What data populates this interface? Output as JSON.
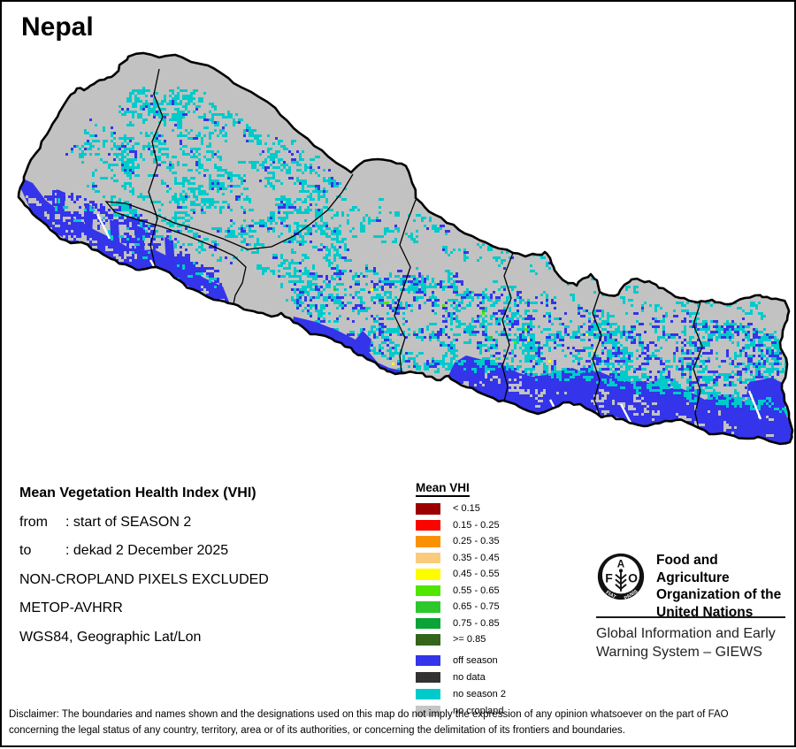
{
  "title": "Nepal",
  "map": {
    "colors": {
      "background": "#ffffff",
      "country_fill": "#c2c2c2",
      "border": "#000000",
      "off_season": "#3434ea",
      "no_data": "#323232",
      "no_season2": "#00cbcb",
      "no_cropland": "#c6c6c6",
      "river_gap": "#ffffff"
    }
  },
  "info_block": {
    "heading": "Mean Vegetation Health Index (VHI)",
    "lines": [
      {
        "label": "from",
        "value": ": start of SEASON 2"
      },
      {
        "label": "to",
        "value": ": dekad 2 December 2025"
      }
    ],
    "notes": [
      "NON-CROPLAND PIXELS EXCLUDED",
      "METOP-AVHRR",
      "WGS84, Geographic Lat/Lon"
    ]
  },
  "legend": {
    "title": "Mean VHI",
    "classes": [
      {
        "label": "< 0.15",
        "color": "#9a0000"
      },
      {
        "label": "0.15 - 0.25",
        "color": "#fa0400"
      },
      {
        "label": "0.25 - 0.35",
        "color": "#fa9104"
      },
      {
        "label": "0.35 - 0.45",
        "color": "#fbcb7d"
      },
      {
        "label": "0.45 - 0.55",
        "color": "#fdfd00"
      },
      {
        "label": "0.55 - 0.65",
        "color": "#50e600"
      },
      {
        "label": "0.65 - 0.75",
        "color": "#2cc82c"
      },
      {
        "label": "0.75 - 0.85",
        "color": "#0aa336"
      },
      {
        "label": ">= 0.85",
        "color": "#33661a"
      }
    ],
    "extra_classes": [
      {
        "label": "off season",
        "color": "#3434ea"
      },
      {
        "label": "no data",
        "color": "#323232"
      },
      {
        "label": "no season 2",
        "color": "#00cbcb"
      },
      {
        "label": "no cropland",
        "color": "#c6c6c6"
      }
    ]
  },
  "org": {
    "logo_letters": [
      "F",
      "A",
      "O"
    ],
    "logo_motto": [
      "FIAT",
      "PANIS"
    ],
    "name_lines": [
      "Food and Agriculture",
      "Organization of the",
      "United Nations"
    ],
    "subtitle_lines": [
      "Global Information and Early",
      "Warning System – GIEWS"
    ]
  },
  "disclaimer": {
    "lines": [
      "Disclaimer: The boundaries and names shown and the designations used on this map do not imply the expression of any opinion whatsoever on the part of FAO",
      "concerning the legal status of any country, territory, area or of its authorities, or concerning the delimitation of its frontiers and boundaries."
    ]
  }
}
